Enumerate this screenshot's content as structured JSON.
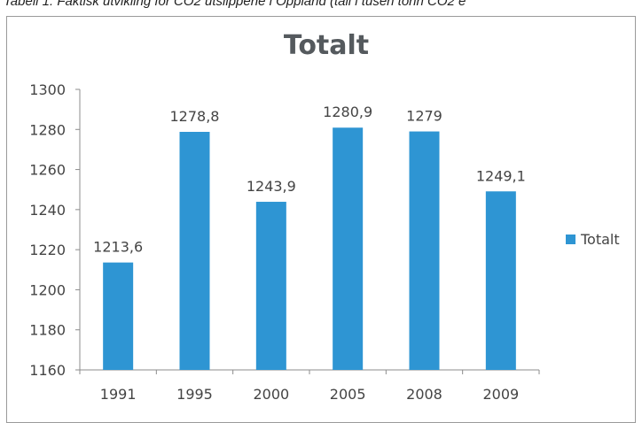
{
  "caption": "Tabell 1: Faktisk utvikling for CO2 utslippene i Oppland (tall i tusen tonn CO2 e",
  "chart_data": {
    "type": "bar",
    "title": "Totalt",
    "categories": [
      "1991",
      "1995",
      "2000",
      "2005",
      "2008",
      "2009"
    ],
    "series": [
      {
        "name": "Totalt",
        "values": [
          1213.6,
          1278.8,
          1243.9,
          1280.9,
          1279,
          1249.1
        ]
      }
    ],
    "data_labels": [
      "1213,6",
      "1278,8",
      "1243,9",
      "1280,9",
      "1279",
      "1249,1"
    ],
    "ylim": [
      1160,
      1300
    ],
    "yticks": [
      1160,
      1180,
      1200,
      1220,
      1240,
      1260,
      1280,
      1300
    ],
    "xlabel": "",
    "ylabel": "",
    "grid": false,
    "legend_position": "right",
    "bar_color": "#2e95d3"
  }
}
